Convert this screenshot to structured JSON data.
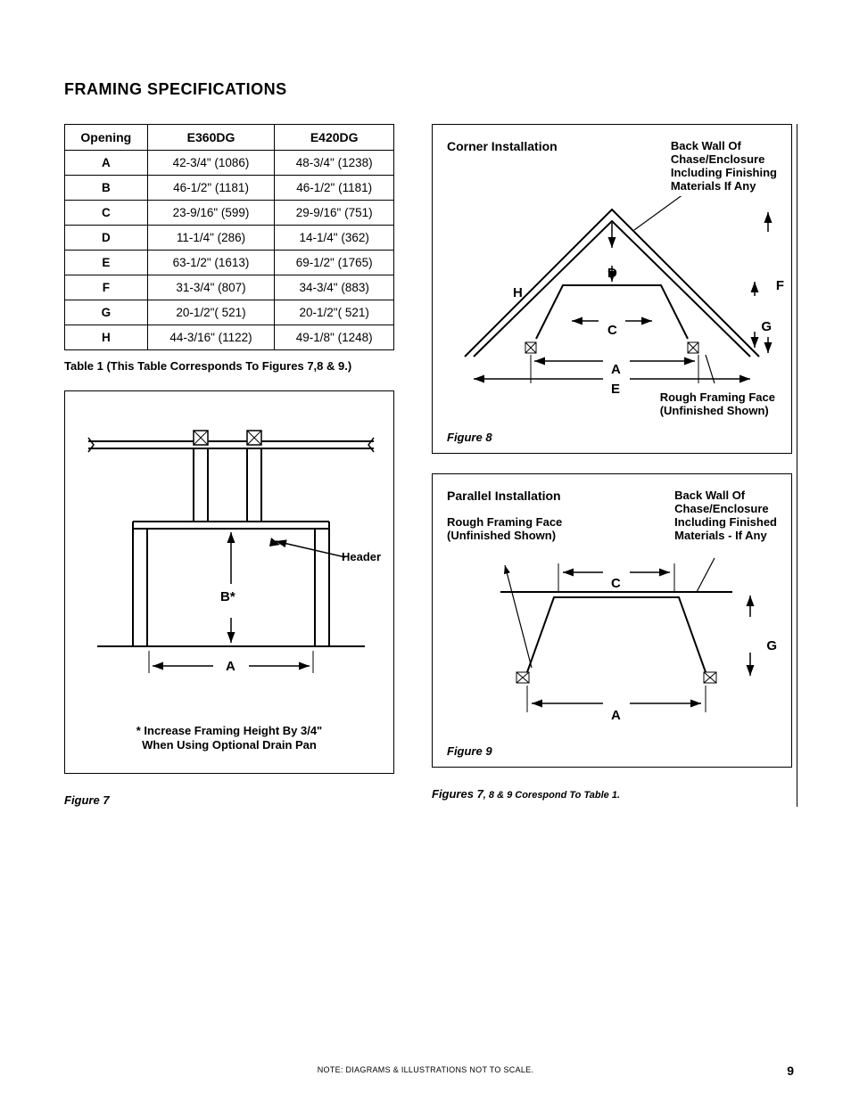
{
  "section_title": "FRAMING SPECIFICATIONS",
  "table": {
    "columns": [
      "Opening",
      "E360DG",
      "E420DG"
    ],
    "rows": [
      [
        "A",
        "42-3/4\" (1086)",
        "48-3/4\" (1238)"
      ],
      [
        "B",
        "46-1/2\" (1181)",
        "46-1/2\" (1181)"
      ],
      [
        "C",
        "23-9/16\" (599)",
        "29-9/16\" (751)"
      ],
      [
        "D",
        "11-1/4\" (286)",
        "14-1/4\" (362)"
      ],
      [
        "E",
        "63-1/2\" (1613)",
        "69-1/2\" (1765)"
      ],
      [
        "F",
        "31-3/4\" (807)",
        "34-3/4\" (883)"
      ],
      [
        "G",
        "20-1/2\"( 521)",
        "20-1/2\"( 521)"
      ],
      [
        "H",
        "44-3/16\" (1122)",
        "49-1/8\" (1248)"
      ]
    ],
    "caption": "Table 1  (This Table Corresponds To Figures 7,8 & 9.)"
  },
  "figure7": {
    "label": "Figure 7",
    "header_label": "Header",
    "dim_A": "A",
    "dim_B": "B*",
    "footnote_line1": "* Increase Framing Height By 3/4\"",
    "footnote_line2": "When Using Optional Drain Pan"
  },
  "figure8": {
    "title": "Corner  Installation",
    "label": "Figure 8",
    "back_wall_l1": "Back Wall Of",
    "back_wall_l2": "Chase/Enclosure",
    "back_wall_l3": "Including Finishing",
    "back_wall_l4": "Materials If Any",
    "rough_l1": "Rough Framing Face",
    "rough_l2": "(Unfinished Shown)",
    "dim_A": "A",
    "dim_C": "C",
    "dim_D": "D",
    "dim_E": "E",
    "dim_F": "F",
    "dim_G": "G",
    "dim_H": "H"
  },
  "figure9": {
    "title": "Parallel Installation",
    "label": "Figure 9",
    "back_wall_l1": "Back Wall Of",
    "back_wall_l2": "Chase/Enclosure",
    "back_wall_l3": "Including Finished",
    "back_wall_l4": "Materials - If Any",
    "rough_l1": "Rough Framing Face",
    "rough_l2": "(Unfinished Shown)",
    "dim_A": "A",
    "dim_C": "C",
    "dim_G": "G"
  },
  "correspond_note_pre": "Figures 7",
  "correspond_note_post": ", 8 & 9 Corespond To Table 1.",
  "footer_note": "NOTE: DIAGRAMS & ILLUSTRATIONS NOT TO SCALE.",
  "page_number": "9"
}
